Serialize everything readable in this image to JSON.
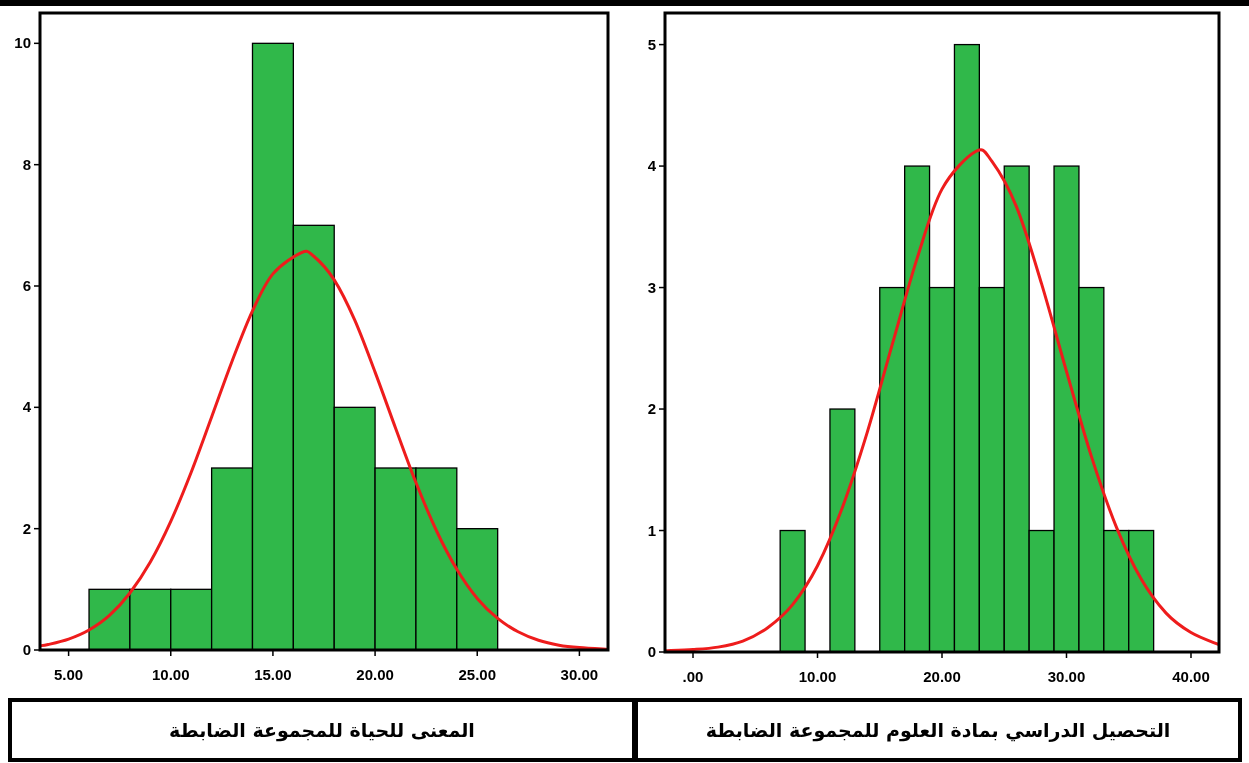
{
  "chart_data": [
    {
      "type": "histogram",
      "xlabel": "المعنى للحياة  للمجموعة الضابطة",
      "bins": [
        6,
        8,
        10,
        12,
        14,
        16,
        18,
        20,
        22,
        24,
        26
      ],
      "values": [
        1,
        1,
        1,
        3,
        10,
        7,
        4,
        3,
        3,
        2
      ],
      "color": "#30b84a",
      "xlim": [
        3.6,
        31.4
      ],
      "ylim": [
        0,
        10.5
      ],
      "xticks": [
        {
          "value": 5,
          "label": "5.00"
        },
        {
          "value": 10,
          "label": "10.00"
        },
        {
          "value": 15,
          "label": "15.00"
        },
        {
          "value": 20,
          "label": "20.00"
        },
        {
          "value": 25,
          "label": "25.00"
        },
        {
          "value": 30,
          "label": "30.00"
        }
      ],
      "yticks": [
        0,
        2,
        4,
        6,
        8,
        10
      ],
      "series": [
        {
          "type": "line",
          "color": "#ee1c1c",
          "x": [
            3.6,
            4,
            5,
            6,
            7,
            8,
            9,
            10,
            11,
            12,
            13,
            14,
            15,
            16.4,
            17,
            18,
            19,
            20,
            21,
            22,
            23,
            24,
            25,
            26,
            27,
            28,
            29,
            30,
            31.4
          ],
          "values": [
            0.07,
            0.09,
            0.18,
            0.33,
            0.57,
            0.94,
            1.45,
            2.12,
            2.93,
            3.84,
            4.76,
            5.59,
            6.2,
            6.55,
            6.49,
            6.1,
            5.44,
            4.58,
            3.66,
            2.76,
            1.97,
            1.33,
            0.85,
            0.52,
            0.3,
            0.16,
            0.08,
            0.04,
            0.01
          ]
        }
      ]
    },
    {
      "type": "histogram",
      "xlabel": "التحصيل الدراسي بمادة العلوم للمجموعة الضابطة",
      "bins": [
        7,
        9,
        11,
        13,
        15,
        17,
        19,
        21,
        23,
        25,
        27,
        29,
        31,
        33,
        35,
        37
      ],
      "values": [
        1,
        0,
        2,
        0,
        3,
        4,
        3,
        5,
        3,
        4,
        1,
        4,
        3,
        1,
        1
      ],
      "color": "#30b84a",
      "xlim": [
        -2.25,
        42.25
      ],
      "ylim": [
        0,
        5.26
      ],
      "xticks": [
        {
          "value": 0,
          "label": ".00"
        },
        {
          "value": 10,
          "label": "10.00"
        },
        {
          "value": 20,
          "label": "20.00"
        },
        {
          "value": 30,
          "label": "30.00"
        },
        {
          "value": 40,
          "label": "40.00"
        }
      ],
      "yticks": [
        0,
        1,
        2,
        3,
        4,
        5
      ],
      "series": [
        {
          "type": "line",
          "color": "#ee1c1c",
          "x": [
            -2.25,
            0,
            2,
            4,
            6,
            8,
            10,
            12,
            14,
            16,
            18,
            20,
            22.7,
            24,
            26,
            28,
            30,
            32,
            34,
            36,
            38,
            40,
            42.25
          ],
          "values": [
            0.01,
            0.02,
            0.04,
            0.09,
            0.2,
            0.39,
            0.71,
            1.19,
            1.81,
            2.53,
            3.24,
            3.81,
            4.12,
            4.04,
            3.66,
            3.03,
            2.31,
            1.61,
            1.03,
            0.6,
            0.32,
            0.16,
            0.06
          ]
        }
      ]
    }
  ]
}
